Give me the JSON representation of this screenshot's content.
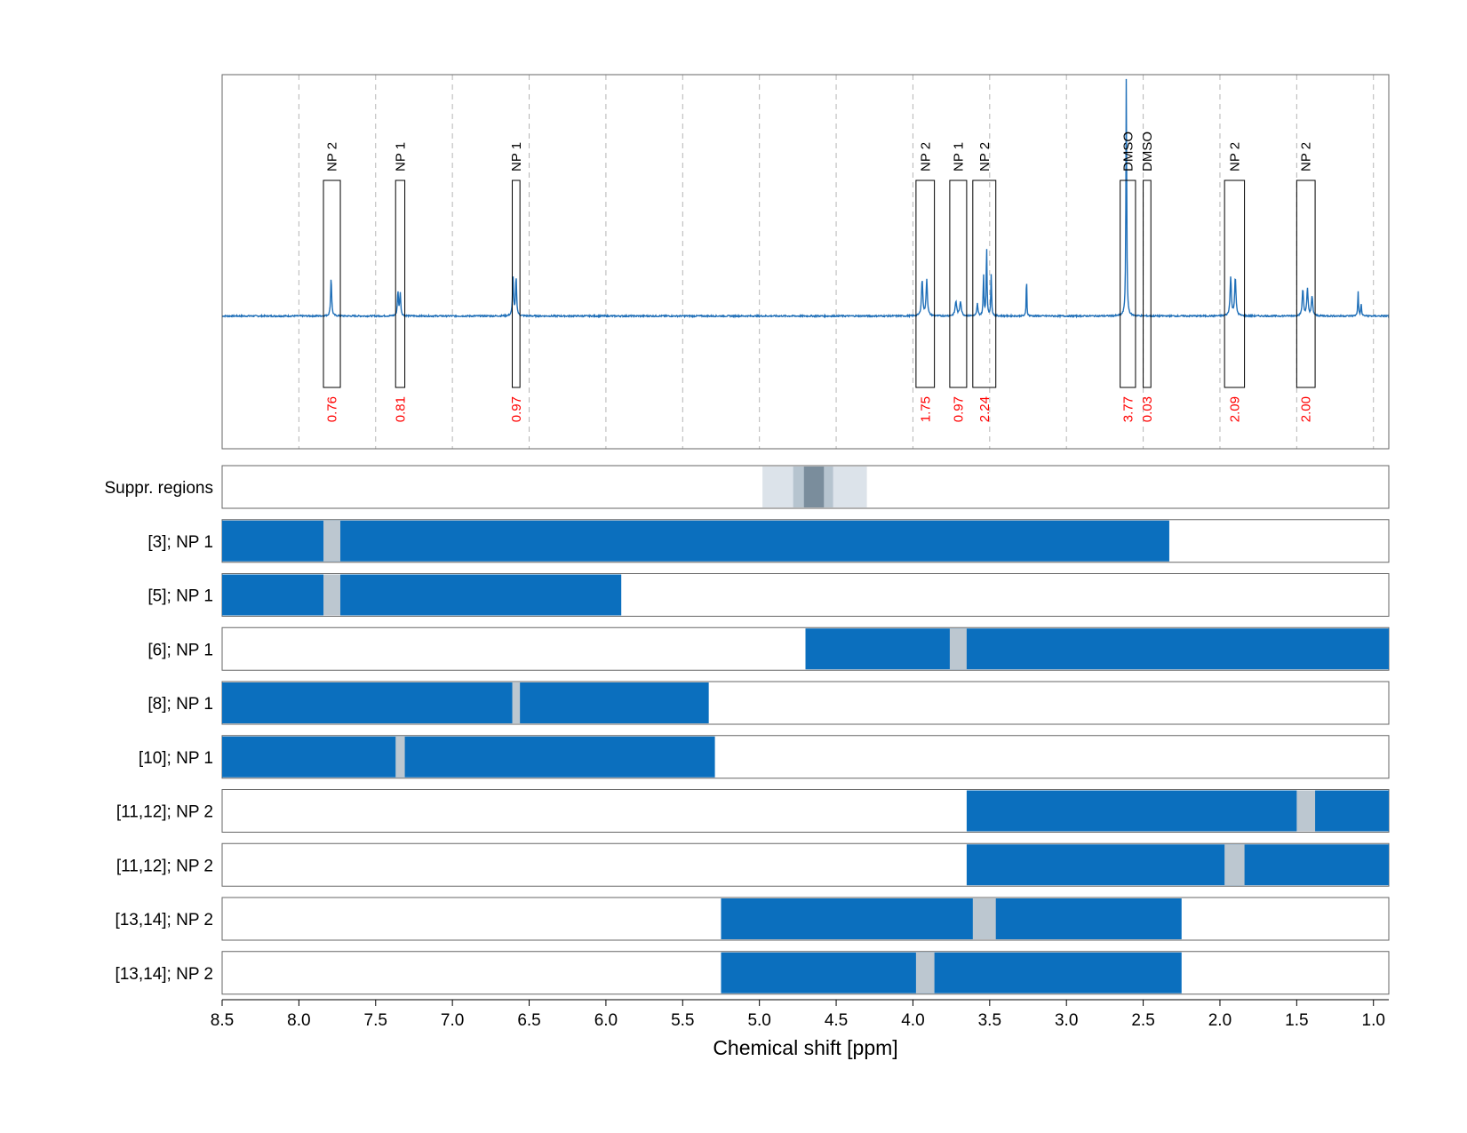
{
  "chart_data": {
    "type": "nmr-spectrum-with-ranges",
    "xlabel": "Chemical shift [ppm]",
    "xlim": [
      8.5,
      0.9
    ],
    "x_reversed": true,
    "xticks": [
      8.5,
      8.0,
      7.5,
      7.0,
      6.5,
      6.0,
      5.5,
      5.0,
      4.5,
      4.0,
      3.5,
      3.0,
      2.5,
      2.0,
      1.5,
      1.0
    ],
    "xtick_labels": [
      "8.5",
      "8.0",
      "7.5",
      "7.0",
      "6.5",
      "6.0",
      "5.5",
      "5.0",
      "4.5",
      "4.0",
      "3.5",
      "3.0",
      "2.5",
      "2.0",
      "1.5",
      "1.0"
    ],
    "grid": "vertical dashed",
    "colors": {
      "spectrum": "#1f6fb8",
      "bar": "#0b6fbe",
      "gap": "#bcc7d0",
      "integral_text": "#ff0000",
      "suppr_light": "#dce3ea",
      "suppr_mid": "#b6c4cf",
      "suppr_dark": "#7a8d9c"
    },
    "spectrum": {
      "baseline": 0.0,
      "ylim": [
        -0.55,
        1.0
      ],
      "peaks": [
        {
          "center": 7.79,
          "height": 0.16,
          "width": 0.004
        },
        {
          "center": 7.355,
          "height": 0.1,
          "width": 0.004
        },
        {
          "center": 7.34,
          "height": 0.095,
          "width": 0.004
        },
        {
          "center": 6.605,
          "height": 0.16,
          "width": 0.004
        },
        {
          "center": 6.585,
          "height": 0.16,
          "width": 0.004
        },
        {
          "center": 3.94,
          "height": 0.15,
          "width": 0.005
        },
        {
          "center": 3.91,
          "height": 0.15,
          "width": 0.005
        },
        {
          "center": 3.72,
          "height": 0.06,
          "width": 0.006
        },
        {
          "center": 3.69,
          "height": 0.06,
          "width": 0.006
        },
        {
          "center": 3.58,
          "height": 0.05,
          "width": 0.004
        },
        {
          "center": 3.54,
          "height": 0.17,
          "width": 0.003
        },
        {
          "center": 3.52,
          "height": 0.29,
          "width": 0.003
        },
        {
          "center": 3.49,
          "height": 0.17,
          "width": 0.003
        },
        {
          "center": 3.26,
          "height": 0.19,
          "width": 0.002
        },
        {
          "center": 2.61,
          "height": 1.0,
          "width": 0.003
        },
        {
          "center": 1.93,
          "height": 0.16,
          "width": 0.005
        },
        {
          "center": 1.9,
          "height": 0.16,
          "width": 0.005
        },
        {
          "center": 1.46,
          "height": 0.11,
          "width": 0.005
        },
        {
          "center": 1.43,
          "height": 0.11,
          "width": 0.005
        },
        {
          "center": 1.4,
          "height": 0.08,
          "width": 0.005
        },
        {
          "center": 1.1,
          "height": 0.1,
          "width": 0.003
        },
        {
          "center": 1.08,
          "height": 0.05,
          "width": 0.003
        }
      ]
    },
    "annotated_regions": [
      {
        "label": "NP 2",
        "integral": "0.76",
        "from": 7.84,
        "to": 7.73
      },
      {
        "label": "NP 1",
        "integral": "0.81",
        "from": 7.37,
        "to": 7.31
      },
      {
        "label": "NP 1",
        "integral": "0.97",
        "from": 6.61,
        "to": 6.56
      },
      {
        "label": "NP 2",
        "integral": "1.75",
        "from": 3.98,
        "to": 3.86
      },
      {
        "label": "NP 1",
        "integral": "0.97",
        "from": 3.76,
        "to": 3.65
      },
      {
        "label": "NP 2",
        "integral": "2.24",
        "from": 3.61,
        "to": 3.46
      },
      {
        "label": "DMSO",
        "integral": "3.77",
        "from": 2.65,
        "to": 2.55
      },
      {
        "label": "DMSO",
        "integral": "0.03",
        "from": 2.5,
        "to": 2.45
      },
      {
        "label": "NP 2",
        "integral": "2.09",
        "from": 1.97,
        "to": 1.84
      },
      {
        "label": "NP 2",
        "integral": "2.00",
        "from": 1.5,
        "to": 1.38
      }
    ],
    "suppressed_regions": {
      "label": "Suppr. regions",
      "bands": [
        {
          "from": 4.98,
          "to": 4.3,
          "shade": "light"
        },
        {
          "from": 4.78,
          "to": 4.52,
          "shade": "mid"
        },
        {
          "from": 4.71,
          "to": 4.58,
          "shade": "dark"
        }
      ]
    },
    "rows": [
      {
        "label": "[3]; NP 1",
        "from": 8.5,
        "to": 2.33,
        "gap": [
          7.84,
          7.73
        ]
      },
      {
        "label": "[5]; NP 1",
        "from": 8.5,
        "to": 5.9,
        "gap": [
          7.84,
          7.73
        ]
      },
      {
        "label": "[6]; NP 1",
        "from": 4.7,
        "to": 0.9,
        "gap": [
          3.76,
          3.65
        ]
      },
      {
        "label": "[8]; NP 1",
        "from": 8.5,
        "to": 5.33,
        "gap": [
          6.61,
          6.56
        ]
      },
      {
        "label": "[10]; NP 1",
        "from": 8.5,
        "to": 5.29,
        "gap": [
          7.37,
          7.31
        ]
      },
      {
        "label": "[11,12]; NP 2",
        "from": 3.65,
        "to": 0.9,
        "gap": [
          1.5,
          1.38
        ]
      },
      {
        "label": "[11,12]; NP 2",
        "from": 3.65,
        "to": 0.9,
        "gap": [
          1.97,
          1.84
        ]
      },
      {
        "label": "[13,14]; NP 2",
        "from": 5.25,
        "to": 2.25,
        "gap": [
          3.61,
          3.46
        ]
      },
      {
        "label": "[13,14]; NP 2",
        "from": 5.25,
        "to": 2.25,
        "gap": [
          3.98,
          3.86
        ]
      }
    ]
  }
}
